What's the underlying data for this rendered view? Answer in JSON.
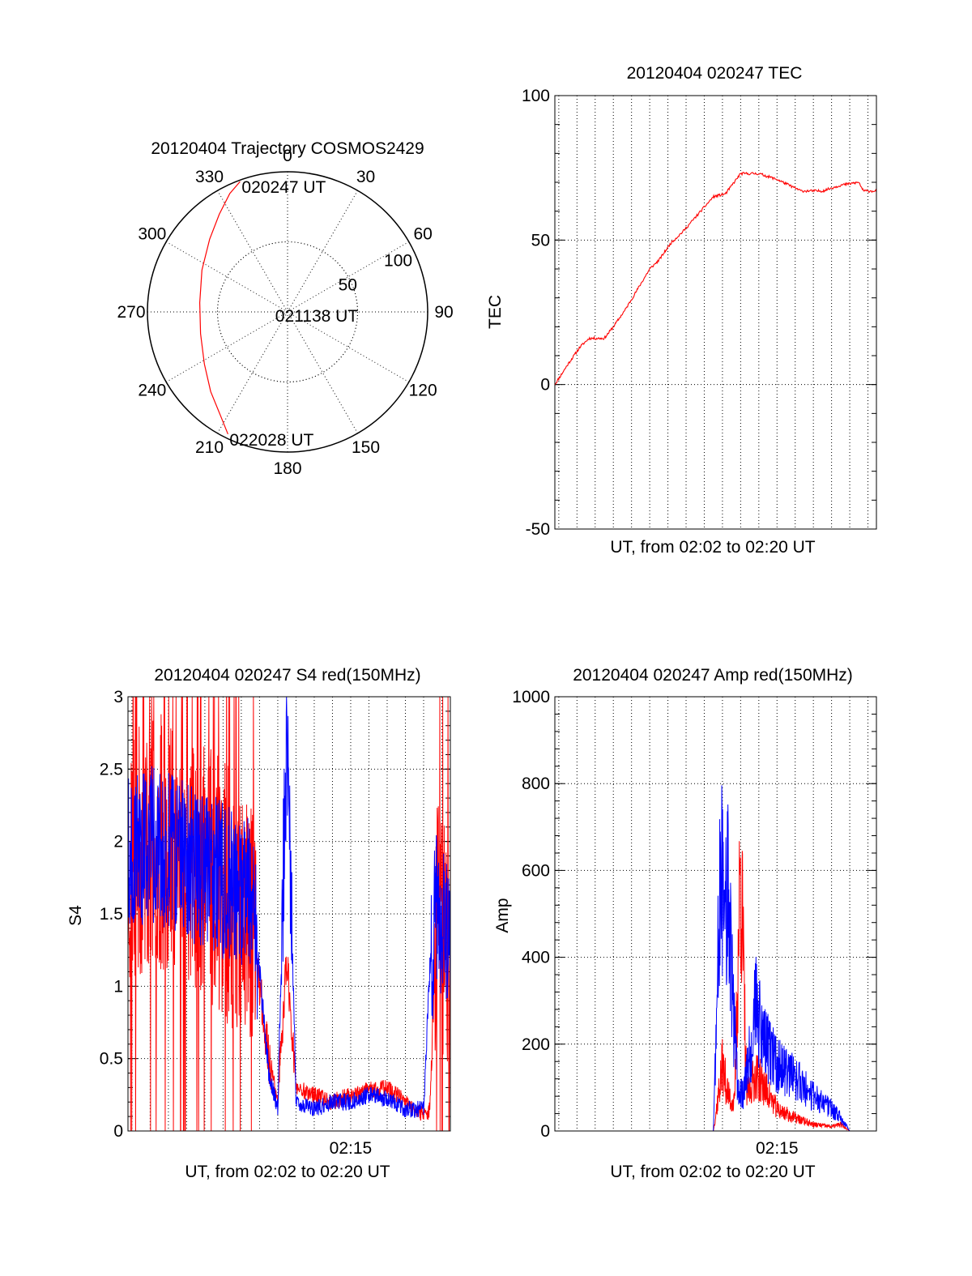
{
  "chart_data": [
    {
      "id": "trajectory",
      "type": "polar",
      "title": "20120404 Trajectory COSMOS2429",
      "angle_labels": [
        "0",
        "30",
        "60",
        "90",
        "120",
        "150",
        "180",
        "210",
        "240",
        "270",
        "300",
        "330"
      ],
      "angles_deg": [
        0,
        30,
        60,
        90,
        120,
        150,
        180,
        210,
        240,
        270,
        300,
        330
      ],
      "radial_labels": [
        "50",
        "100"
      ],
      "radial_values": [
        50,
        100
      ],
      "rlim": [
        0,
        100
      ],
      "grid": true,
      "series": [
        {
          "color": "#ff0000",
          "points": [
            {
              "az": 340,
              "r": 99
            },
            {
              "az": 334,
              "r": 94
            },
            {
              "az": 325,
              "r": 85
            },
            {
              "az": 313,
              "r": 76
            },
            {
              "az": 296,
              "r": 68
            },
            {
              "az": 276,
              "r": 63
            },
            {
              "az": 256,
              "r": 64
            },
            {
              "az": 238,
              "r": 70
            },
            {
              "az": 224,
              "r": 79
            },
            {
              "az": 213,
              "r": 88
            },
            {
              "az": 206,
              "r": 97
            }
          ]
        }
      ],
      "annotations": [
        {
          "text": "020247 UT",
          "az": 340,
          "r": 99
        },
        {
          "text": "021138 UT",
          "az": 276,
          "r": 10
        },
        {
          "text": "022028 UT",
          "az": 206,
          "r": 97
        }
      ]
    },
    {
      "id": "tec",
      "type": "line",
      "title": "20120404 020247 TEC",
      "xlabel": "UT, from 02:02 to 02:20 UT",
      "ylabel": "TEC",
      "xlim": [
        "02:02:47",
        "02:20:28"
      ],
      "ylim": [
        -50,
        100
      ],
      "yticks": [
        "-50",
        "0",
        "50",
        "100"
      ],
      "ytick_values": [
        -50,
        0,
        50,
        100
      ],
      "grid": true,
      "series": [
        {
          "color": "#ff0000",
          "x": [
            "02:02:47",
            "02:03:30",
            "02:04:10",
            "02:04:40",
            "02:05:30",
            "02:06:00",
            "02:06:40",
            "02:07:20",
            "02:08:00",
            "02:08:30",
            "02:09:10",
            "02:09:50",
            "02:10:40",
            "02:11:30",
            "02:12:10",
            "02:13:00",
            "02:14:00",
            "02:15:00",
            "02:16:20",
            "02:17:30",
            "02:18:30",
            "02:19:30",
            "02:19:45",
            "02:20:28"
          ],
          "y": [
            0,
            7,
            13,
            16,
            16,
            20,
            26,
            33,
            40,
            43,
            49,
            53,
            59,
            65,
            66,
            73,
            73,
            71,
            67,
            67,
            69,
            70,
            67,
            67
          ]
        }
      ]
    },
    {
      "id": "s4",
      "type": "line",
      "title": "20120404 020247 S4 red(150MHz)",
      "xlabel": "UT, from 02:02 to 02:20 UT",
      "ylabel": "S4",
      "xlim": [
        "02:02:47",
        "02:20:28"
      ],
      "ylim": [
        0,
        3
      ],
      "yticks": [
        "0",
        "0.5",
        "1",
        "1.5",
        "2",
        "2.5",
        "3"
      ],
      "ytick_values": [
        0,
        0.5,
        1,
        1.5,
        2,
        2.5,
        3
      ],
      "xticks": [
        "02:15"
      ],
      "grid": true,
      "series": [
        {
          "color": "#ff0000",
          "x": [
            "02:02:47",
            "02:04:00",
            "02:05:30",
            "02:07:00",
            "02:08:30",
            "02:09:30",
            "02:10:00",
            "02:10:30",
            "02:11:00",
            "02:11:30",
            "02:12:00",
            "02:13:00",
            "02:14:00",
            "02:15:00",
            "02:16:00",
            "02:17:00",
            "02:18:00",
            "02:19:00",
            "02:19:20",
            "02:19:40",
            "02:20:28"
          ],
          "y": [
            1.8,
            2.0,
            2.0,
            1.8,
            1.6,
            1.5,
            1.0,
            0.5,
            0.2,
            1.2,
            0.3,
            0.25,
            0.2,
            0.25,
            0.28,
            0.3,
            0.2,
            0.1,
            0.15,
            1.4,
            1.3
          ]
        },
        {
          "color": "#0000ff",
          "x": [
            "02:02:47",
            "02:04:00",
            "02:05:30",
            "02:07:00",
            "02:08:30",
            "02:09:30",
            "02:10:00",
            "02:10:30",
            "02:11:00",
            "02:11:30",
            "02:12:00",
            "02:13:00",
            "02:14:00",
            "02:15:00",
            "02:16:00",
            "02:17:00",
            "02:18:00",
            "02:19:00",
            "02:19:20",
            "02:19:40",
            "02:20:28"
          ],
          "y": [
            1.9,
            2.0,
            1.9,
            1.8,
            1.7,
            1.6,
            1.1,
            0.4,
            0.15,
            2.8,
            0.2,
            0.15,
            0.2,
            0.2,
            0.25,
            0.22,
            0.15,
            0.15,
            1.1,
            1.5,
            1.3
          ]
        }
      ]
    },
    {
      "id": "amp",
      "type": "line",
      "title": "20120404 020247 Amp red(150MHz)",
      "xlabel": "UT, from 02:02 to 02:20 UT",
      "ylabel": "Amp",
      "xlim": [
        "02:02:47",
        "02:20:28"
      ],
      "ylim": [
        0,
        1000
      ],
      "yticks": [
        "0",
        "200",
        "400",
        "600",
        "800",
        "1000"
      ],
      "ytick_values": [
        0,
        200,
        400,
        600,
        800,
        1000
      ],
      "xticks": [
        "02:15"
      ],
      "grid": true,
      "series": [
        {
          "color": "#ff0000",
          "x": [
            "02:02:47",
            "02:11:30",
            "02:12:00",
            "02:12:20",
            "02:12:40",
            "02:13:00",
            "02:13:20",
            "02:13:50",
            "02:14:20",
            "02:15:00",
            "02:16:00",
            "02:17:00",
            "02:18:00",
            "02:18:30",
            "02:19:00",
            "02:20:28"
          ],
          "y": [
            0,
            0,
            150,
            80,
            60,
            630,
            80,
            130,
            100,
            50,
            30,
            15,
            10,
            15,
            0,
            0
          ]
        },
        {
          "color": "#0000ff",
          "x": [
            "02:02:47",
            "02:11:30",
            "02:11:50",
            "02:12:10",
            "02:12:30",
            "02:12:50",
            "02:13:10",
            "02:13:50",
            "02:14:20",
            "02:15:00",
            "02:16:00",
            "02:17:00",
            "02:17:40",
            "02:18:20",
            "02:19:00",
            "02:20:28"
          ],
          "y": [
            0,
            0,
            500,
            650,
            350,
            100,
            80,
            280,
            200,
            150,
            120,
            80,
            60,
            40,
            0,
            0
          ]
        }
      ]
    }
  ]
}
